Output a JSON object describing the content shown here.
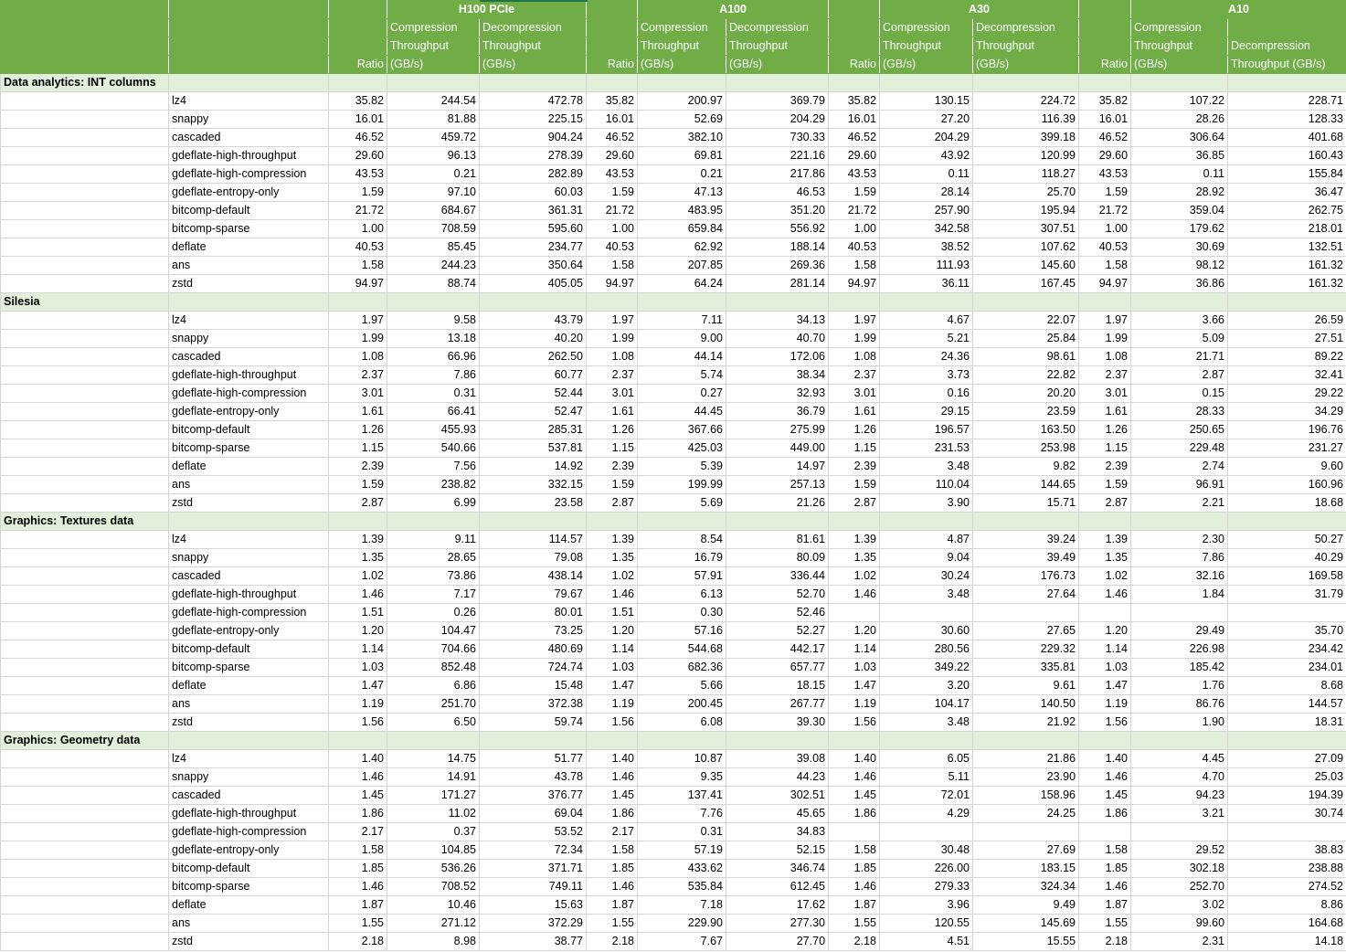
{
  "gpus": [
    "H100 PCIe",
    "A100",
    "A30",
    "A10"
  ],
  "col_headers": {
    "ratio": "Ratio",
    "comp_line1": "Compression",
    "comp_line2": "Throughput",
    "comp_line3": "(GB/s)",
    "decomp_line1": "Decompression",
    "decomp_line2": "Throughput",
    "decomp_line3": "(GB/s)",
    "a10_decomp_line2": "Decompression",
    "a10_decomp_line3": "Throughput (GB/s)"
  },
  "sections": [
    {
      "title": "Data analytics: INT columns",
      "rows": [
        [
          "lz4",
          "35.82",
          "244.54",
          "472.78",
          "35.82",
          "200.97",
          "369.79",
          "35.82",
          "130.15",
          "224.72",
          "35.82",
          "107.22",
          "228.71"
        ],
        [
          "snappy",
          "16.01",
          "81.88",
          "225.15",
          "16.01",
          "52.69",
          "204.29",
          "16.01",
          "27.20",
          "116.39",
          "16.01",
          "28.26",
          "128.33"
        ],
        [
          "cascaded",
          "46.52",
          "459.72",
          "904.24",
          "46.52",
          "382.10",
          "730.33",
          "46.52",
          "204.29",
          "399.18",
          "46.52",
          "306.64",
          "401.68"
        ],
        [
          "gdeflate-high-throughput",
          "29.60",
          "96.13",
          "278.39",
          "29.60",
          "69.81",
          "221.16",
          "29.60",
          "43.92",
          "120.99",
          "29.60",
          "36.85",
          "160.43"
        ],
        [
          "gdeflate-high-compression",
          "43.53",
          "0.21",
          "282.89",
          "43.53",
          "0.21",
          "217.86",
          "43.53",
          "0.11",
          "118.27",
          "43.53",
          "0.11",
          "155.84"
        ],
        [
          "gdeflate-entropy-only",
          "1.59",
          "97.10",
          "60.03",
          "1.59",
          "47.13",
          "46.53",
          "1.59",
          "28.14",
          "25.70",
          "1.59",
          "28.92",
          "36.47"
        ],
        [
          "bitcomp-default",
          "21.72",
          "684.67",
          "361.31",
          "21.72",
          "483.95",
          "351.20",
          "21.72",
          "257.90",
          "195.94",
          "21.72",
          "359.04",
          "262.75"
        ],
        [
          "bitcomp-sparse",
          "1.00",
          "708.59",
          "595.60",
          "1.00",
          "659.84",
          "556.92",
          "1.00",
          "342.58",
          "307.51",
          "1.00",
          "179.62",
          "218.01"
        ],
        [
          "deflate",
          "40.53",
          "85.45",
          "234.77",
          "40.53",
          "62.92",
          "188.14",
          "40.53",
          "38.52",
          "107.62",
          "40.53",
          "30.69",
          "132.51"
        ],
        [
          "ans",
          "1.58",
          "244.23",
          "350.64",
          "1.58",
          "207.85",
          "269.36",
          "1.58",
          "111.93",
          "145.60",
          "1.58",
          "98.12",
          "161.32"
        ],
        [
          "zstd",
          "94.97",
          "88.74",
          "405.05",
          "94.97",
          "64.24",
          "281.14",
          "94.97",
          "36.11",
          "167.45",
          "94.97",
          "36.86",
          "161.32"
        ]
      ]
    },
    {
      "title": "Silesia",
      "rows": [
        [
          "lz4",
          "1.97",
          "9.58",
          "43.79",
          "1.97",
          "7.11",
          "34.13",
          "1.97",
          "4.67",
          "22.07",
          "1.97",
          "3.66",
          "26.59"
        ],
        [
          "snappy",
          "1.99",
          "13.18",
          "40.20",
          "1.99",
          "9.00",
          "40.70",
          "1.99",
          "5.21",
          "25.84",
          "1.99",
          "5.09",
          "27.51"
        ],
        [
          "cascaded",
          "1.08",
          "66.96",
          "262.50",
          "1.08",
          "44.14",
          "172.06",
          "1.08",
          "24.36",
          "98.61",
          "1.08",
          "21.71",
          "89.22"
        ],
        [
          "gdeflate-high-throughput",
          "2.37",
          "7.86",
          "60.77",
          "2.37",
          "5.74",
          "38.34",
          "2.37",
          "3.73",
          "22.82",
          "2.37",
          "2.87",
          "32.41"
        ],
        [
          "gdeflate-high-compression",
          "3.01",
          "0.31",
          "52.44",
          "3.01",
          "0.27",
          "32.93",
          "3.01",
          "0.16",
          "20.20",
          "3.01",
          "0.15",
          "29.22"
        ],
        [
          "gdeflate-entropy-only",
          "1.61",
          "66.41",
          "52.47",
          "1.61",
          "44.45",
          "36.79",
          "1.61",
          "29.15",
          "23.59",
          "1.61",
          "28.33",
          "34.29"
        ],
        [
          "bitcomp-default",
          "1.26",
          "455.93",
          "285.31",
          "1.26",
          "367.66",
          "275.99",
          "1.26",
          "196.57",
          "163.50",
          "1.26",
          "250.65",
          "196.76"
        ],
        [
          "bitcomp-sparse",
          "1.15",
          "540.66",
          "537.81",
          "1.15",
          "425.03",
          "449.00",
          "1.15",
          "231.53",
          "253.98",
          "1.15",
          "229.48",
          "231.27"
        ],
        [
          "deflate",
          "2.39",
          "7.56",
          "14.92",
          "2.39",
          "5.39",
          "14.97",
          "2.39",
          "3.48",
          "9.82",
          "2.39",
          "2.74",
          "9.60"
        ],
        [
          "ans",
          "1.59",
          "238.82",
          "332.15",
          "1.59",
          "199.99",
          "257.13",
          "1.59",
          "110.04",
          "144.65",
          "1.59",
          "96.91",
          "160.96"
        ],
        [
          "zstd",
          "2.87",
          "6.99",
          "23.58",
          "2.87",
          "5.69",
          "21.26",
          "2.87",
          "3.90",
          "15.71",
          "2.87",
          "2.21",
          "18.68"
        ]
      ]
    },
    {
      "title": "Graphics: Textures data",
      "rows": [
        [
          "lz4",
          "1.39",
          "9.11",
          "114.57",
          "1.39",
          "8.54",
          "81.61",
          "1.39",
          "4.87",
          "39.24",
          "1.39",
          "2.30",
          "50.27"
        ],
        [
          "snappy",
          "1.35",
          "28.65",
          "79.08",
          "1.35",
          "16.79",
          "80.09",
          "1.35",
          "9.04",
          "39.49",
          "1.35",
          "7.86",
          "40.29"
        ],
        [
          "cascaded",
          "1.02",
          "73.86",
          "438.14",
          "1.02",
          "57.91",
          "336.44",
          "1.02",
          "30.24",
          "176.73",
          "1.02",
          "32.16",
          "169.58"
        ],
        [
          "gdeflate-high-throughput",
          "1.46",
          "7.17",
          "79.67",
          "1.46",
          "6.13",
          "52.70",
          "1.46",
          "3.48",
          "27.64",
          "1.46",
          "1.84",
          "31.79"
        ],
        [
          "gdeflate-high-compression",
          "1.51",
          "0.26",
          "80.01",
          "1.51",
          "0.30",
          "52.46",
          "",
          "",
          "",
          "",
          "",
          ""
        ],
        [
          "gdeflate-entropy-only",
          "1.20",
          "104.47",
          "73.25",
          "1.20",
          "57.16",
          "52.27",
          "1.20",
          "30.60",
          "27.65",
          "1.20",
          "29.49",
          "35.70"
        ],
        [
          "bitcomp-default",
          "1.14",
          "704.66",
          "480.69",
          "1.14",
          "544.68",
          "442.17",
          "1.14",
          "280.56",
          "229.32",
          "1.14",
          "226.98",
          "234.42"
        ],
        [
          "bitcomp-sparse",
          "1.03",
          "852.48",
          "724.74",
          "1.03",
          "682.36",
          "657.77",
          "1.03",
          "349.22",
          "335.81",
          "1.03",
          "185.42",
          "234.01"
        ],
        [
          "deflate",
          "1.47",
          "6.86",
          "15.48",
          "1.47",
          "5.66",
          "18.15",
          "1.47",
          "3.20",
          "9.61",
          "1.47",
          "1.76",
          "8.68"
        ],
        [
          "ans",
          "1.19",
          "251.70",
          "372.38",
          "1.19",
          "200.45",
          "267.77",
          "1.19",
          "104.17",
          "140.50",
          "1.19",
          "86.76",
          "144.57"
        ],
        [
          "zstd",
          "1.56",
          "6.50",
          "59.74",
          "1.56",
          "6.08",
          "39.30",
          "1.56",
          "3.48",
          "21.92",
          "1.56",
          "1.90",
          "18.31"
        ]
      ]
    },
    {
      "title": "Graphics: Geometry data",
      "rows": [
        [
          "lz4",
          "1.40",
          "14.75",
          "51.77",
          "1.40",
          "10.87",
          "39.08",
          "1.40",
          "6.05",
          "21.86",
          "1.40",
          "4.45",
          "27.09"
        ],
        [
          "snappy",
          "1.46",
          "14.91",
          "43.78",
          "1.46",
          "9.35",
          "44.23",
          "1.46",
          "5.11",
          "23.90",
          "1.46",
          "4.70",
          "25.03"
        ],
        [
          "cascaded",
          "1.45",
          "171.27",
          "376.77",
          "1.45",
          "137.41",
          "302.51",
          "1.45",
          "72.01",
          "158.96",
          "1.45",
          "94.23",
          "194.39"
        ],
        [
          "gdeflate-high-throughput",
          "1.86",
          "11.02",
          "69.04",
          "1.86",
          "7.76",
          "45.65",
          "1.86",
          "4.29",
          "24.25",
          "1.86",
          "3.21",
          "30.74"
        ],
        [
          "gdeflate-high-compression",
          "2.17",
          "0.37",
          "53.52",
          "2.17",
          "0.31",
          "34.83",
          "",
          "",
          "",
          "",
          "",
          ""
        ],
        [
          "gdeflate-entropy-only",
          "1.58",
          "104.85",
          "72.34",
          "1.58",
          "57.19",
          "52.15",
          "1.58",
          "30.48",
          "27.69",
          "1.58",
          "29.52",
          "38.83"
        ],
        [
          "bitcomp-default",
          "1.85",
          "536.26",
          "371.71",
          "1.85",
          "433.62",
          "346.74",
          "1.85",
          "226.00",
          "183.15",
          "1.85",
          "302.18",
          "238.88"
        ],
        [
          "bitcomp-sparse",
          "1.46",
          "708.52",
          "749.11",
          "1.46",
          "535.84",
          "612.45",
          "1.46",
          "279.33",
          "324.34",
          "1.46",
          "252.70",
          "274.52"
        ],
        [
          "deflate",
          "1.87",
          "10.46",
          "15.63",
          "1.87",
          "7.18",
          "17.62",
          "1.87",
          "3.96",
          "9.49",
          "1.87",
          "3.02",
          "8.86"
        ],
        [
          "ans",
          "1.55",
          "271.12",
          "372.29",
          "1.55",
          "229.90",
          "277.30",
          "1.55",
          "120.55",
          "145.69",
          "1.55",
          "99.60",
          "164.68"
        ],
        [
          "zstd",
          "2.18",
          "8.98",
          "38.77",
          "2.18",
          "7.67",
          "27.70",
          "2.18",
          "4.51",
          "15.55",
          "2.18",
          "2.31",
          "14.18"
        ]
      ]
    }
  ]
}
